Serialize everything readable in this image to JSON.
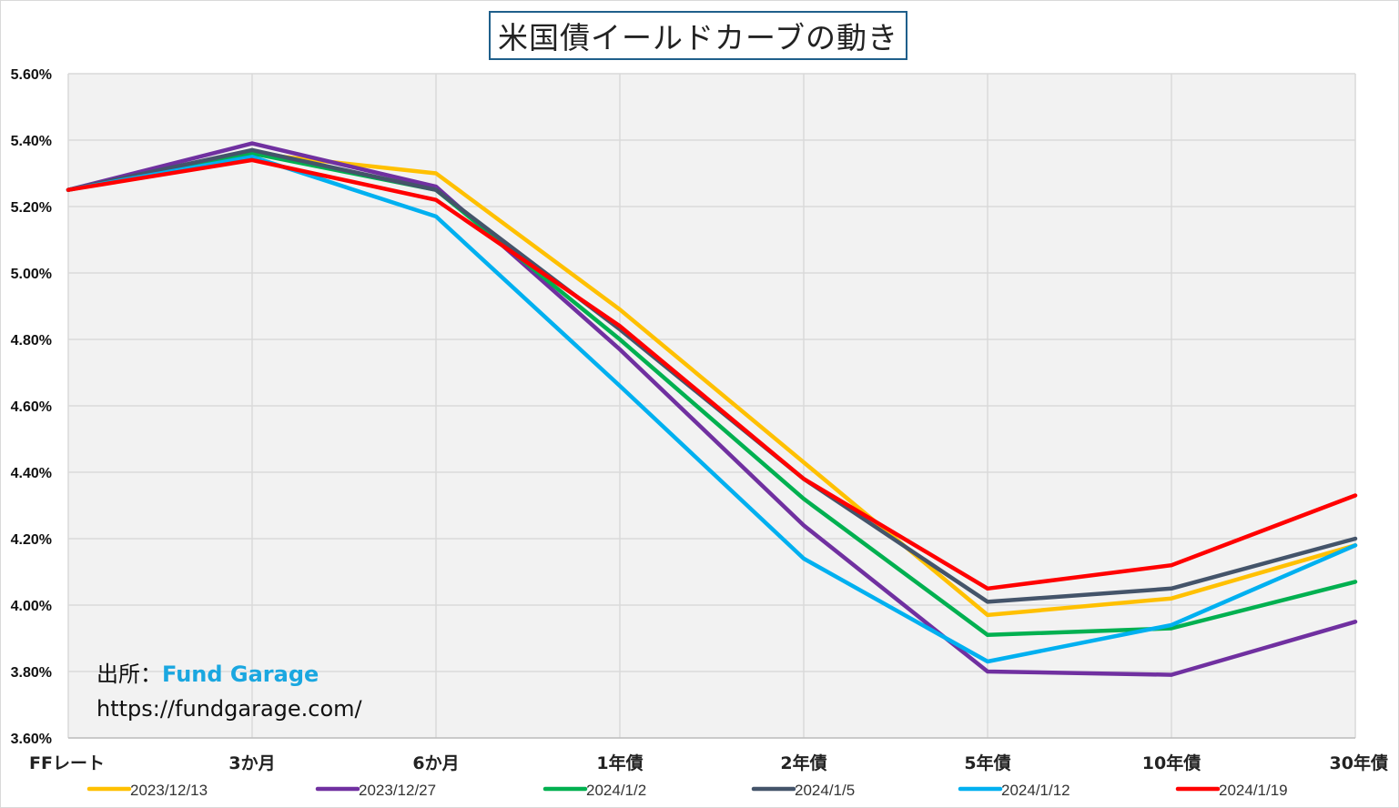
{
  "chart_data": {
    "type": "line",
    "title": "米国債イールドカーブの動き",
    "categories": [
      "FFレート",
      "3か月",
      "6か月",
      "1年債",
      "2年債",
      "5年債",
      "10年債",
      "30年債"
    ],
    "y_ticks": [
      "3.60%",
      "3.80%",
      "4.00%",
      "4.20%",
      "4.40%",
      "4.60%",
      "4.80%",
      "5.00%",
      "5.20%",
      "5.40%",
      "5.60%"
    ],
    "ylim": [
      3.6,
      5.6
    ],
    "grid": true,
    "legend_position": "bottom",
    "series": [
      {
        "name": "2023/12/13",
        "color": "#ffc000",
        "values": [
          5.25,
          5.36,
          5.3,
          4.89,
          4.43,
          3.97,
          4.02,
          4.18
        ]
      },
      {
        "name": "2023/12/27",
        "color": "#7030a0",
        "values": [
          5.25,
          5.39,
          5.26,
          4.77,
          4.24,
          3.8,
          3.79,
          3.95
        ]
      },
      {
        "name": "2024/1/2",
        "color": "#00b050",
        "values": [
          5.25,
          5.36,
          5.25,
          4.8,
          4.32,
          3.91,
          3.93,
          4.07
        ]
      },
      {
        "name": "2024/1/5",
        "color": "#44546a",
        "values": [
          5.25,
          5.37,
          5.25,
          4.83,
          4.38,
          4.01,
          4.05,
          4.2
        ]
      },
      {
        "name": "2024/1/12",
        "color": "#00b0f0",
        "values": [
          5.25,
          5.35,
          5.17,
          4.66,
          4.14,
          3.83,
          3.94,
          4.18
        ]
      },
      {
        "name": "2024/1/19",
        "color": "#ff0000",
        "values": [
          5.25,
          5.34,
          5.22,
          4.84,
          4.38,
          4.05,
          4.12,
          4.33
        ]
      }
    ]
  },
  "annotation": {
    "source_label": "出所：",
    "source_name": "Fund Garage",
    "url": "https://fundgarage.com/"
  }
}
